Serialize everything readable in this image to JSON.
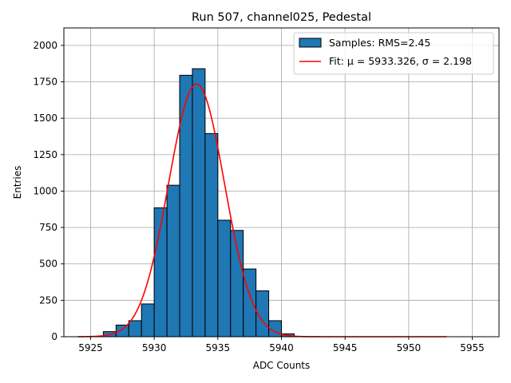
{
  "chart_data": {
    "type": "bar",
    "title": "Run 507, channel025, Pedestal",
    "xlabel": "ADC Counts",
    "ylabel": "Entries",
    "xlim": [
      5922.9,
      5957.1
    ],
    "ylim": [
      0,
      2120
    ],
    "xticks": [
      5925,
      5930,
      5935,
      5940,
      5945,
      5950,
      5955
    ],
    "yticks": [
      0,
      250,
      500,
      750,
      1000,
      1250,
      1500,
      1750,
      2000
    ],
    "grid": true,
    "legend_position": "top-right",
    "histogram": {
      "name": "Samples: RMS=2.45",
      "color": "#1f77b4",
      "bin_width": 1,
      "bins": [
        {
          "start": 5926,
          "count": 35
        },
        {
          "start": 5927,
          "count": 80
        },
        {
          "start": 5928,
          "count": 110
        },
        {
          "start": 5929,
          "count": 225
        },
        {
          "start": 5930,
          "count": 885
        },
        {
          "start": 5931,
          "count": 1040
        },
        {
          "start": 5932,
          "count": 1795
        },
        {
          "start": 5933,
          "count": 1840
        },
        {
          "start": 5934,
          "count": 1395
        },
        {
          "start": 5935,
          "count": 800
        },
        {
          "start": 5936,
          "count": 730
        },
        {
          "start": 5937,
          "count": 465
        },
        {
          "start": 5938,
          "count": 315
        },
        {
          "start": 5939,
          "count": 110
        },
        {
          "start": 5940,
          "count": 20
        }
      ]
    },
    "fit": {
      "name": "Fit: μ = 5933.326, σ = 2.198",
      "color": "#ff0000",
      "type": "gaussian",
      "mu": 5933.326,
      "sigma": 2.198,
      "amplitude": 1735,
      "x_range": [
        5924,
        5953
      ]
    }
  }
}
